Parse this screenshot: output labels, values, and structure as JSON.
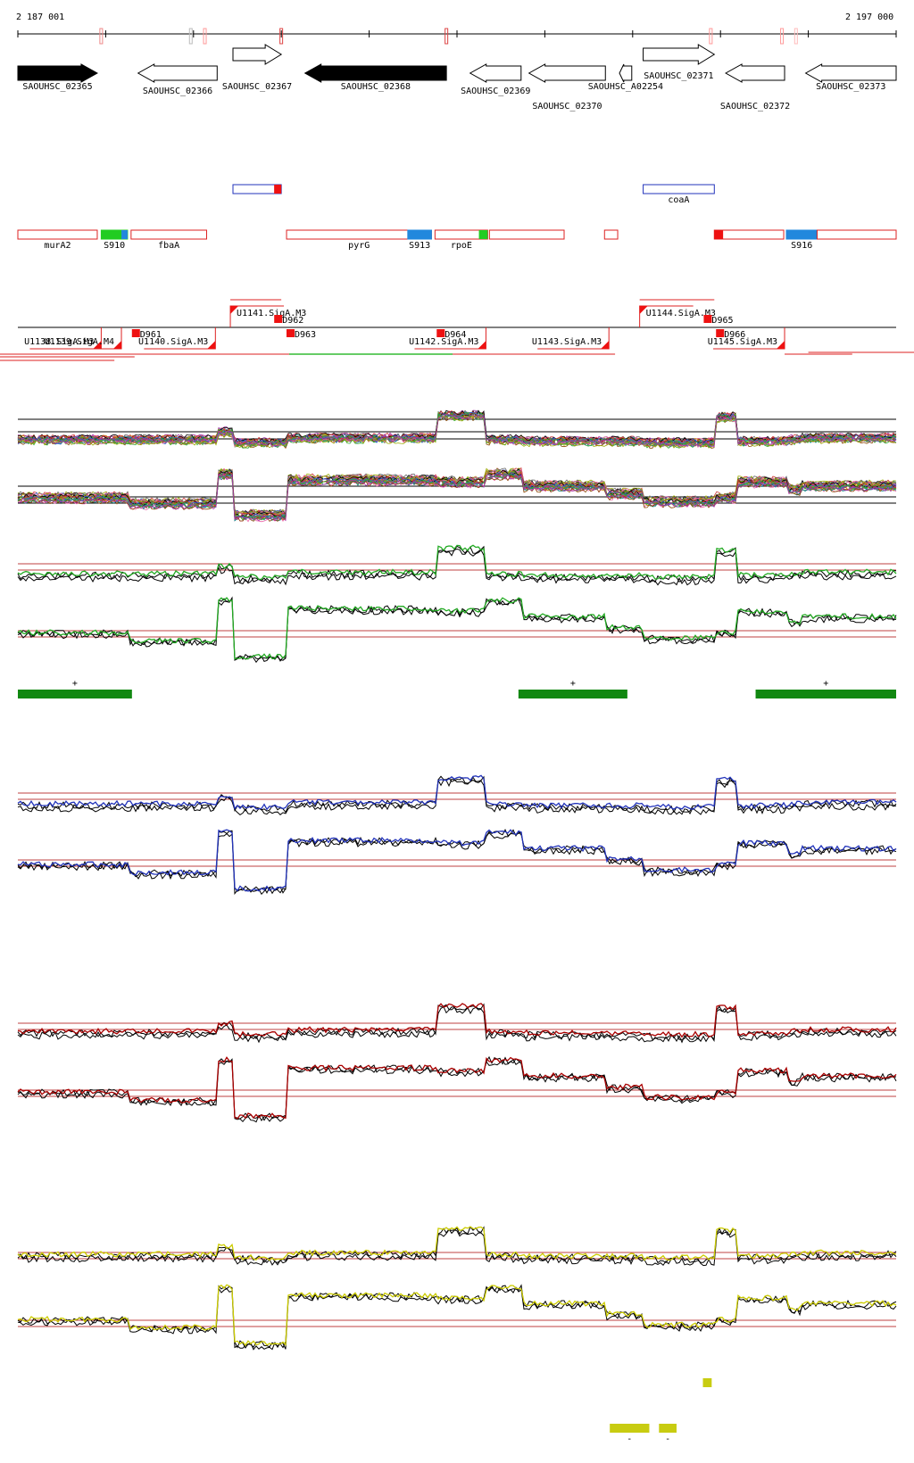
{
  "coordinates": {
    "start_label": "2 187 001",
    "end_label": "2 197 000",
    "start": 2187001,
    "end": 2197000
  },
  "genes": [
    {
      "id": "SAOUHSC_02365",
      "strand": "+",
      "style": "filled",
      "start": 2187001,
      "end": 2187905
    },
    {
      "id": "SAOUHSC_02366",
      "strand": "-",
      "style": "outline",
      "start": 2188370,
      "end": 2189270
    },
    {
      "id": "SAOUHSC_02367",
      "strand": "+",
      "style": "outline",
      "start": 2189450,
      "end": 2190000
    },
    {
      "id": "SAOUHSC_02368",
      "strand": "-",
      "style": "filled",
      "start": 2190270,
      "end": 2191880
    },
    {
      "id": "SAOUHSC_02369",
      "strand": "-",
      "style": "outline",
      "start": 2192150,
      "end": 2192730
    },
    {
      "id": "SAOUHSC_02370",
      "strand": "-",
      "style": "outline",
      "start": 2192820,
      "end": 2193690
    },
    {
      "id": "SAOUHSC_A02254",
      "strand": "-",
      "style": "outline",
      "start": 2193850,
      "end": 2193990
    },
    {
      "id": "SAOUHSC_02371",
      "strand": "+",
      "style": "outline",
      "start": 2194120,
      "end": 2194930
    },
    {
      "id": "SAOUHSC_02372",
      "strand": "-",
      "style": "outline",
      "start": 2195060,
      "end": 2195730
    },
    {
      "id": "SAOUHSC_02373",
      "strand": "-",
      "style": "outline",
      "start": 2195970,
      "end": 2197000
    }
  ],
  "regions_upper": [
    {
      "label": "",
      "start": 2189450,
      "end": 2190000,
      "color": "#2233bb",
      "tip": "right"
    },
    {
      "label": "coaA",
      "start": 2194120,
      "end": 2194930,
      "color": "#2233bb",
      "tip": ""
    }
  ],
  "regions_lower": [
    {
      "label": "murA2",
      "start": 2187001,
      "end": 2187905,
      "color": "#dd2222",
      "segments": []
    },
    {
      "label": "S910",
      "start": 2187950,
      "end": 2188250,
      "color": "#22cc22",
      "segments": [
        {
          "start": 2188180,
          "end": 2188250,
          "color": "#2288dd"
        }
      ]
    },
    {
      "label": "fbaA",
      "start": 2188290,
      "end": 2189150,
      "color": "#dd2222",
      "segments": []
    },
    {
      "label": "pyrG",
      "start": 2190060,
      "end": 2191710,
      "color": "#dd2222",
      "segments": []
    },
    {
      "label": "S913",
      "start": 2191440,
      "end": 2191710,
      "color": "#2288dd",
      "segments": []
    },
    {
      "label": "rpoE",
      "start": 2191750,
      "end": 2192350,
      "color": "#dd2222",
      "segments": [
        {
          "start": 2192250,
          "end": 2192350,
          "color": "#22cc22"
        }
      ]
    },
    {
      "label": "",
      "start": 2192370,
      "end": 2193220,
      "color": "#dd2222",
      "segments": []
    },
    {
      "label": "",
      "start": 2193680,
      "end": 2193830,
      "color": "#dd2222",
      "segments": []
    },
    {
      "label": "",
      "start": 2194930,
      "end": 2195720,
      "color": "#dd2222",
      "segments": [
        {
          "start": 2194930,
          "end": 2195030,
          "color": "#ee1111"
        }
      ]
    },
    {
      "label": "S916",
      "start": 2195750,
      "end": 2196100,
      "color": "#2288dd",
      "segments": []
    },
    {
      "label": "",
      "start": 2196100,
      "end": 2197000,
      "color": "#dd2222",
      "segments": []
    }
  ],
  "promoters_top": [
    {
      "label": "U1141.SigA.M3",
      "pos": 2189420
    },
    {
      "label": "U1144.SigA.M3",
      "pos": 2194080
    }
  ],
  "promoters_bottom": [
    {
      "label": "U1138.SigA.M3",
      "pos": 2187950
    },
    {
      "label": "U1139.SigA.M4",
      "pos": 2188180
    },
    {
      "label": "U1140.SigA.M3",
      "pos": 2189250
    },
    {
      "label": "U1142.SigA.M3",
      "pos": 2192330
    },
    {
      "label": "U1143.SigA.M3",
      "pos": 2193730
    },
    {
      "label": "U1145.SigA.M3",
      "pos": 2195730
    }
  ],
  "terminators": [
    {
      "label": "D961",
      "pos": 2188330,
      "row": "bottom"
    },
    {
      "label": "D962",
      "pos": 2189950,
      "row": "top"
    },
    {
      "label": "D963",
      "pos": 2190090,
      "row": "bottom"
    },
    {
      "label": "D964",
      "pos": 2191800,
      "row": "bottom"
    },
    {
      "label": "D965",
      "pos": 2194840,
      "row": "top"
    },
    {
      "label": "D966",
      "pos": 2194980,
      "row": "bottom"
    }
  ],
  "segments_green": [
    {
      "label": "+",
      "start": 2187001,
      "end": 2188300
    },
    {
      "label": "+",
      "start": 2192700,
      "end": 2193940
    },
    {
      "label": "+",
      "start": 2195400,
      "end": 2197000
    }
  ],
  "segments_yellow": [
    {
      "label": "",
      "start": 2194800,
      "end": 2194900
    },
    {
      "label": "-",
      "start": 2193740,
      "end": 2194190
    },
    {
      "label": "-",
      "start": 2194300,
      "end": 2194500
    }
  ],
  "track_colors": {
    "blue": "#2233bb",
    "green": "#22aa22",
    "red": "#aa0000",
    "yellow": "#cccc00",
    "black": "#000000"
  },
  "expression_blocks_top": [
    0,
    0,
    0.5,
    -0.2,
    0.1,
    1.6,
    0,
    -0.1,
    -0.1,
    -0.2,
    1.5,
    -0.1,
    0,
    0.1
  ],
  "expression_blocks_bottom": [
    0,
    -0.3,
    1.2,
    -0.9,
    0.9,
    0.8,
    1.2,
    0.6,
    0.2,
    -0.2,
    0,
    0.8,
    0.4,
    0.6
  ]
}
